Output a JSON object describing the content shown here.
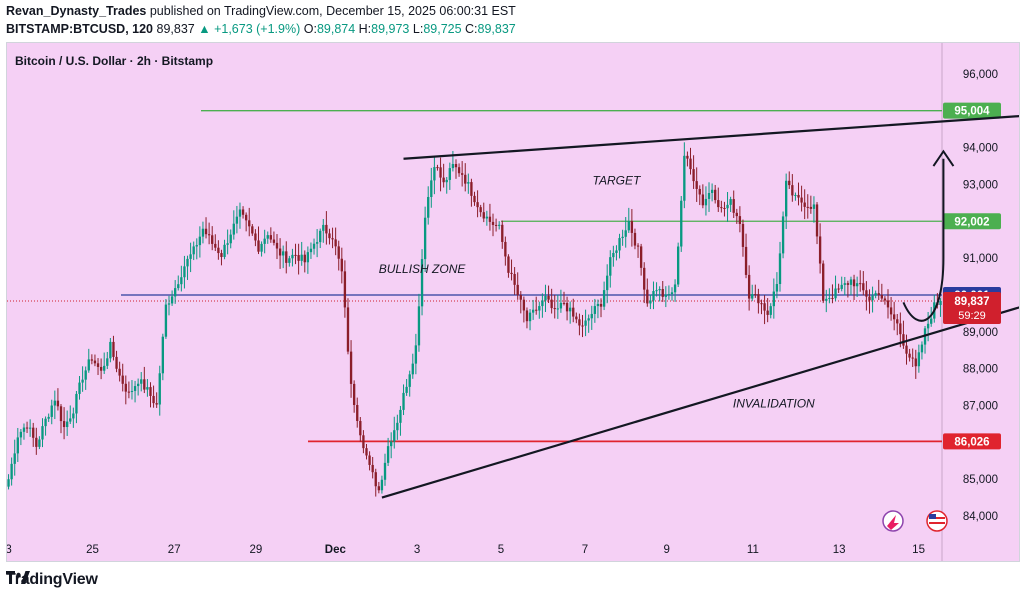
{
  "header": {
    "author": "Revan_Dynasty_Trades",
    "published_text": "published on TradingView.com, December 15, 2025 06:00:31 EST",
    "symbol": "BITSTAMP:BTCUSD, 120",
    "last": "89,837",
    "change": "+1,673 (+1.9%)",
    "o_label": "O:",
    "o": "89,874",
    "h_label": "H:",
    "h": "89,973",
    "l_label": "L:",
    "l": "89,725",
    "c_label": "C:",
    "c": "89,837"
  },
  "chart_data": {
    "type": "candlestick",
    "title": "Bitcoin / U.S. Dollar · 2h · Bitstamp",
    "ylim": [
      83600,
      96800
    ],
    "y_ticks": [
      "96,000",
      "94,000",
      "93,000",
      "92,000",
      "91,000",
      "90,000",
      "89,000",
      "88,000",
      "87,000",
      "86,000",
      "85,000",
      "84,000"
    ],
    "y_tick_values": [
      96000,
      94000,
      93000,
      92000,
      91000,
      90000,
      89000,
      88000,
      87000,
      86000,
      85000,
      84000
    ],
    "x_ticks": [
      "3",
      "25",
      "27",
      "29",
      "Dec",
      "3",
      "5",
      "7",
      "9",
      "11",
      "13",
      "15"
    ],
    "close_path": [
      [
        0,
        85000
      ],
      [
        3,
        86200
      ],
      [
        6,
        86500
      ],
      [
        9,
        85900
      ],
      [
        12,
        86600
      ],
      [
        15,
        87200
      ],
      [
        18,
        86400
      ],
      [
        21,
        86900
      ],
      [
        24,
        87800
      ],
      [
        27,
        88300
      ],
      [
        30,
        87900
      ],
      [
        33,
        88600
      ],
      [
        36,
        87800
      ],
      [
        39,
        87300
      ],
      [
        42,
        87700
      ],
      [
        45,
        87400
      ],
      [
        48,
        87000
      ],
      [
        51,
        89700
      ],
      [
        54,
        90200
      ],
      [
        57,
        90800
      ],
      [
        60,
        91200
      ],
      [
        63,
        91800
      ],
      [
        66,
        91400
      ],
      [
        69,
        91100
      ],
      [
        72,
        91700
      ],
      [
        75,
        92200
      ],
      [
        78,
        91800
      ],
      [
        81,
        91300
      ],
      [
        84,
        91700
      ],
      [
        87,
        91200
      ],
      [
        90,
        91000
      ],
      [
        93,
        91100
      ],
      [
        96,
        90900
      ],
      [
        99,
        91400
      ],
      [
        102,
        91800
      ],
      [
        105,
        91600
      ],
      [
        108,
        90600
      ],
      [
        111,
        87500
      ],
      [
        114,
        86300
      ],
      [
        117,
        85300
      ],
      [
        120,
        84700
      ],
      [
        123,
        85900
      ],
      [
        126,
        86600
      ],
      [
        129,
        87600
      ],
      [
        132,
        88600
      ],
      [
        135,
        92200
      ],
      [
        138,
        93600
      ],
      [
        141,
        93000
      ],
      [
        144,
        93500
      ],
      [
        147,
        93300
      ],
      [
        150,
        92800
      ],
      [
        153,
        92300
      ],
      [
        156,
        92000
      ],
      [
        159,
        91800
      ],
      [
        162,
        90700
      ],
      [
        165,
        90000
      ],
      [
        168,
        89300
      ],
      [
        171,
        89600
      ],
      [
        174,
        89900
      ],
      [
        177,
        89500
      ],
      [
        180,
        89800
      ],
      [
        183,
        89400
      ],
      [
        186,
        89100
      ],
      [
        189,
        89500
      ],
      [
        192,
        89800
      ],
      [
        195,
        90900
      ],
      [
        198,
        91500
      ],
      [
        201,
        92000
      ],
      [
        204,
        91200
      ],
      [
        207,
        89800
      ],
      [
        210,
        90200
      ],
      [
        213,
        89900
      ],
      [
        216,
        90200
      ],
      [
        219,
        93800
      ],
      [
        222,
        93200
      ],
      [
        225,
        92500
      ],
      [
        228,
        92900
      ],
      [
        231,
        92300
      ],
      [
        234,
        92500
      ],
      [
        237,
        92000
      ],
      [
        240,
        90000
      ],
      [
        243,
        89900
      ],
      [
        246,
        89500
      ],
      [
        249,
        90300
      ],
      [
        252,
        93000
      ],
      [
        255,
        92600
      ],
      [
        258,
        92500
      ],
      [
        261,
        92400
      ],
      [
        264,
        89900
      ],
      [
        267,
        90000
      ],
      [
        270,
        90200
      ],
      [
        273,
        90400
      ],
      [
        276,
        90200
      ],
      [
        279,
        89900
      ],
      [
        282,
        90100
      ],
      [
        285,
        89600
      ],
      [
        288,
        89200
      ],
      [
        291,
        88500
      ],
      [
        294,
        88000
      ],
      [
        297,
        89000
      ],
      [
        300,
        89700
      ],
      [
        302,
        89837
      ]
    ],
    "levels": [
      {
        "label": "95,004",
        "value": 95004,
        "color": "#4caf50",
        "style": "horizontal-line"
      },
      {
        "label": "92,002",
        "value": 92002,
        "color": "#4caf50",
        "style": "horizontal-line"
      },
      {
        "label": "90,001",
        "value": 90001,
        "color": "#2a3c9e",
        "style": "horizontal-line"
      },
      {
        "label": "86,026",
        "value": 86026,
        "color": "#e0242e",
        "style": "horizontal-line"
      }
    ],
    "price_label": {
      "value": "89,837",
      "countdown": "59:29",
      "color": "#d0202d"
    },
    "trendlines": [
      {
        "from": [
          128,
          93700
        ],
        "to": [
          335,
          94900
        ],
        "color": "#131722"
      },
      {
        "from": [
          121,
          84500
        ],
        "to": [
          335,
          89850
        ],
        "color": "#131722"
      }
    ],
    "annotations": [
      {
        "text": "TARGET",
        "at": [
          197,
          93000
        ]
      },
      {
        "text": "BULLISH ZONE",
        "at": [
          134,
          90600
        ]
      },
      {
        "text": "INVALIDATION",
        "at": [
          248,
          86950
        ]
      }
    ]
  },
  "footer": {
    "brand": "TradingView"
  },
  "colors": {
    "background": "#f5d0f5",
    "up": "#089981",
    "down": "#8b1e2a"
  }
}
